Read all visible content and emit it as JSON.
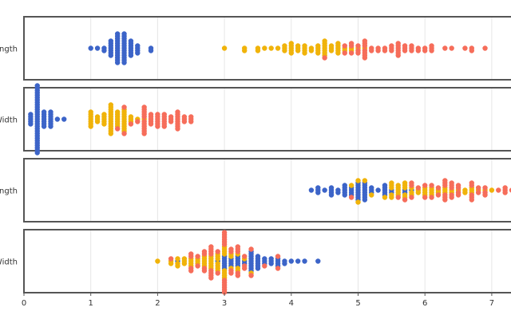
{
  "chart_data": {
    "type": "scatter",
    "subtype": "beeswarm",
    "xlim": [
      0,
      7.7
    ],
    "x_ticks": [
      "0",
      "1",
      "2",
      "3",
      "4",
      "5",
      "6",
      "7"
    ],
    "grid": true,
    "colors": [
      "#3c64c8",
      "#f0b30a",
      "#f66d5a"
    ],
    "panels": [
      {
        "label": "Petal Length",
        "series": [
          {
            "1.0": 1,
            "1.1": 1,
            "1.2": 2,
            "1.3": 7,
            "1.4": 13,
            "1.5": 13,
            "1.6": 7,
            "1.7": 4,
            "1.9": 2
          },
          {
            "3.0": 1,
            "3.3": 2,
            "3.5": 2,
            "3.6": 1,
            "3.7": 1,
            "3.8": 1,
            "3.9": 3,
            "4.0": 5,
            "4.1": 3,
            "4.2": 4,
            "4.3": 2,
            "4.4": 4,
            "4.5": 7,
            "4.6": 3,
            "4.7": 5,
            "4.8": 2,
            "4.9": 2,
            "5.0": 1,
            "5.1": 1
          },
          {
            "4.5": 1,
            "4.8": 2,
            "4.9": 3,
            "5.0": 3,
            "5.1": 7,
            "5.2": 2,
            "5.3": 2,
            "5.4": 2,
            "5.5": 3,
            "5.6": 6,
            "5.7": 3,
            "5.8": 3,
            "5.9": 2,
            "6.0": 2,
            "6.1": 3,
            "6.3": 1,
            "6.4": 1,
            "6.6": 1,
            "6.7": 2,
            "6.9": 1
          }
        ]
      },
      {
        "label": "Petal Width",
        "series": [
          {
            "0.1": 5,
            "0.2": 29,
            "0.3": 7,
            "0.4": 7,
            "0.5": 1,
            "0.6": 1
          },
          {
            "1.0": 7,
            "1.1": 3,
            "1.2": 5,
            "1.3": 13,
            "1.4": 7,
            "1.5": 10,
            "1.6": 3,
            "1.7": 1,
            "1.8": 1
          },
          {
            "1.4": 1,
            "1.5": 2,
            "1.6": 1,
            "1.7": 1,
            "1.8": 11,
            "1.9": 5,
            "2.0": 6,
            "2.1": 6,
            "2.2": 3,
            "2.3": 8,
            "2.4": 3,
            "2.5": 3
          }
        ]
      },
      {
        "label": "Sepal Length",
        "series": [
          {
            "4.3": 1,
            "4.4": 3,
            "4.5": 1,
            "4.6": 4,
            "4.7": 2,
            "4.8": 5,
            "4.9": 4,
            "5.0": 8,
            "5.1": 8,
            "5.2": 3,
            "5.3": 1,
            "5.4": 5,
            "5.5": 2,
            "5.7": 2,
            "5.8": 1
          },
          {
            "4.9": 1,
            "5.0": 2,
            "5.1": 1,
            "5.2": 1,
            "5.4": 1,
            "5.5": 5,
            "5.6": 5,
            "5.7": 5,
            "5.8": 3,
            "5.9": 2,
            "6.0": 4,
            "6.1": 4,
            "6.2": 2,
            "6.3": 3,
            "6.4": 2,
            "6.5": 1,
            "6.6": 2,
            "6.7": 3,
            "6.8": 1,
            "6.9": 1,
            "7.0": 1
          },
          {
            "4.9": 1,
            "5.6": 1,
            "5.7": 1,
            "5.8": 3,
            "5.9": 1,
            "6.0": 2,
            "6.1": 2,
            "6.2": 2,
            "6.3": 6,
            "6.4": 5,
            "6.5": 4,
            "6.7": 5,
            "6.8": 2,
            "6.9": 3,
            "7.1": 1,
            "7.2": 3,
            "7.3": 1,
            "7.4": 1,
            "7.6": 1,
            "7.7": 4,
            "7.9": 1
          }
        ]
      },
      {
        "label": "Sepal Width",
        "series": [
          {
            "2.3": 1,
            "2.9": 1,
            "3.0": 6,
            "3.1": 4,
            "3.2": 5,
            "3.3": 2,
            "3.4": 9,
            "3.5": 6,
            "3.6": 3,
            "3.7": 3,
            "3.8": 4,
            "3.9": 2,
            "4.0": 1,
            "4.1": 1,
            "4.2": 1,
            "4.4": 1
          },
          {
            "2.0": 1,
            "2.2": 2,
            "2.3": 3,
            "2.4": 3,
            "2.5": 4,
            "2.6": 3,
            "2.7": 5,
            "2.8": 6,
            "2.9": 7,
            "3.0": 8,
            "3.1": 3,
            "3.2": 3,
            "3.3": 1,
            "3.4": 1
          },
          {
            "2.2": 1,
            "2.5": 4,
            "2.6": 2,
            "2.7": 4,
            "2.8": 8,
            "2.9": 2,
            "3.0": 12,
            "3.1": 4,
            "3.2": 5,
            "3.3": 3,
            "3.4": 2,
            "3.6": 1,
            "3.8": 2
          }
        ]
      }
    ]
  }
}
